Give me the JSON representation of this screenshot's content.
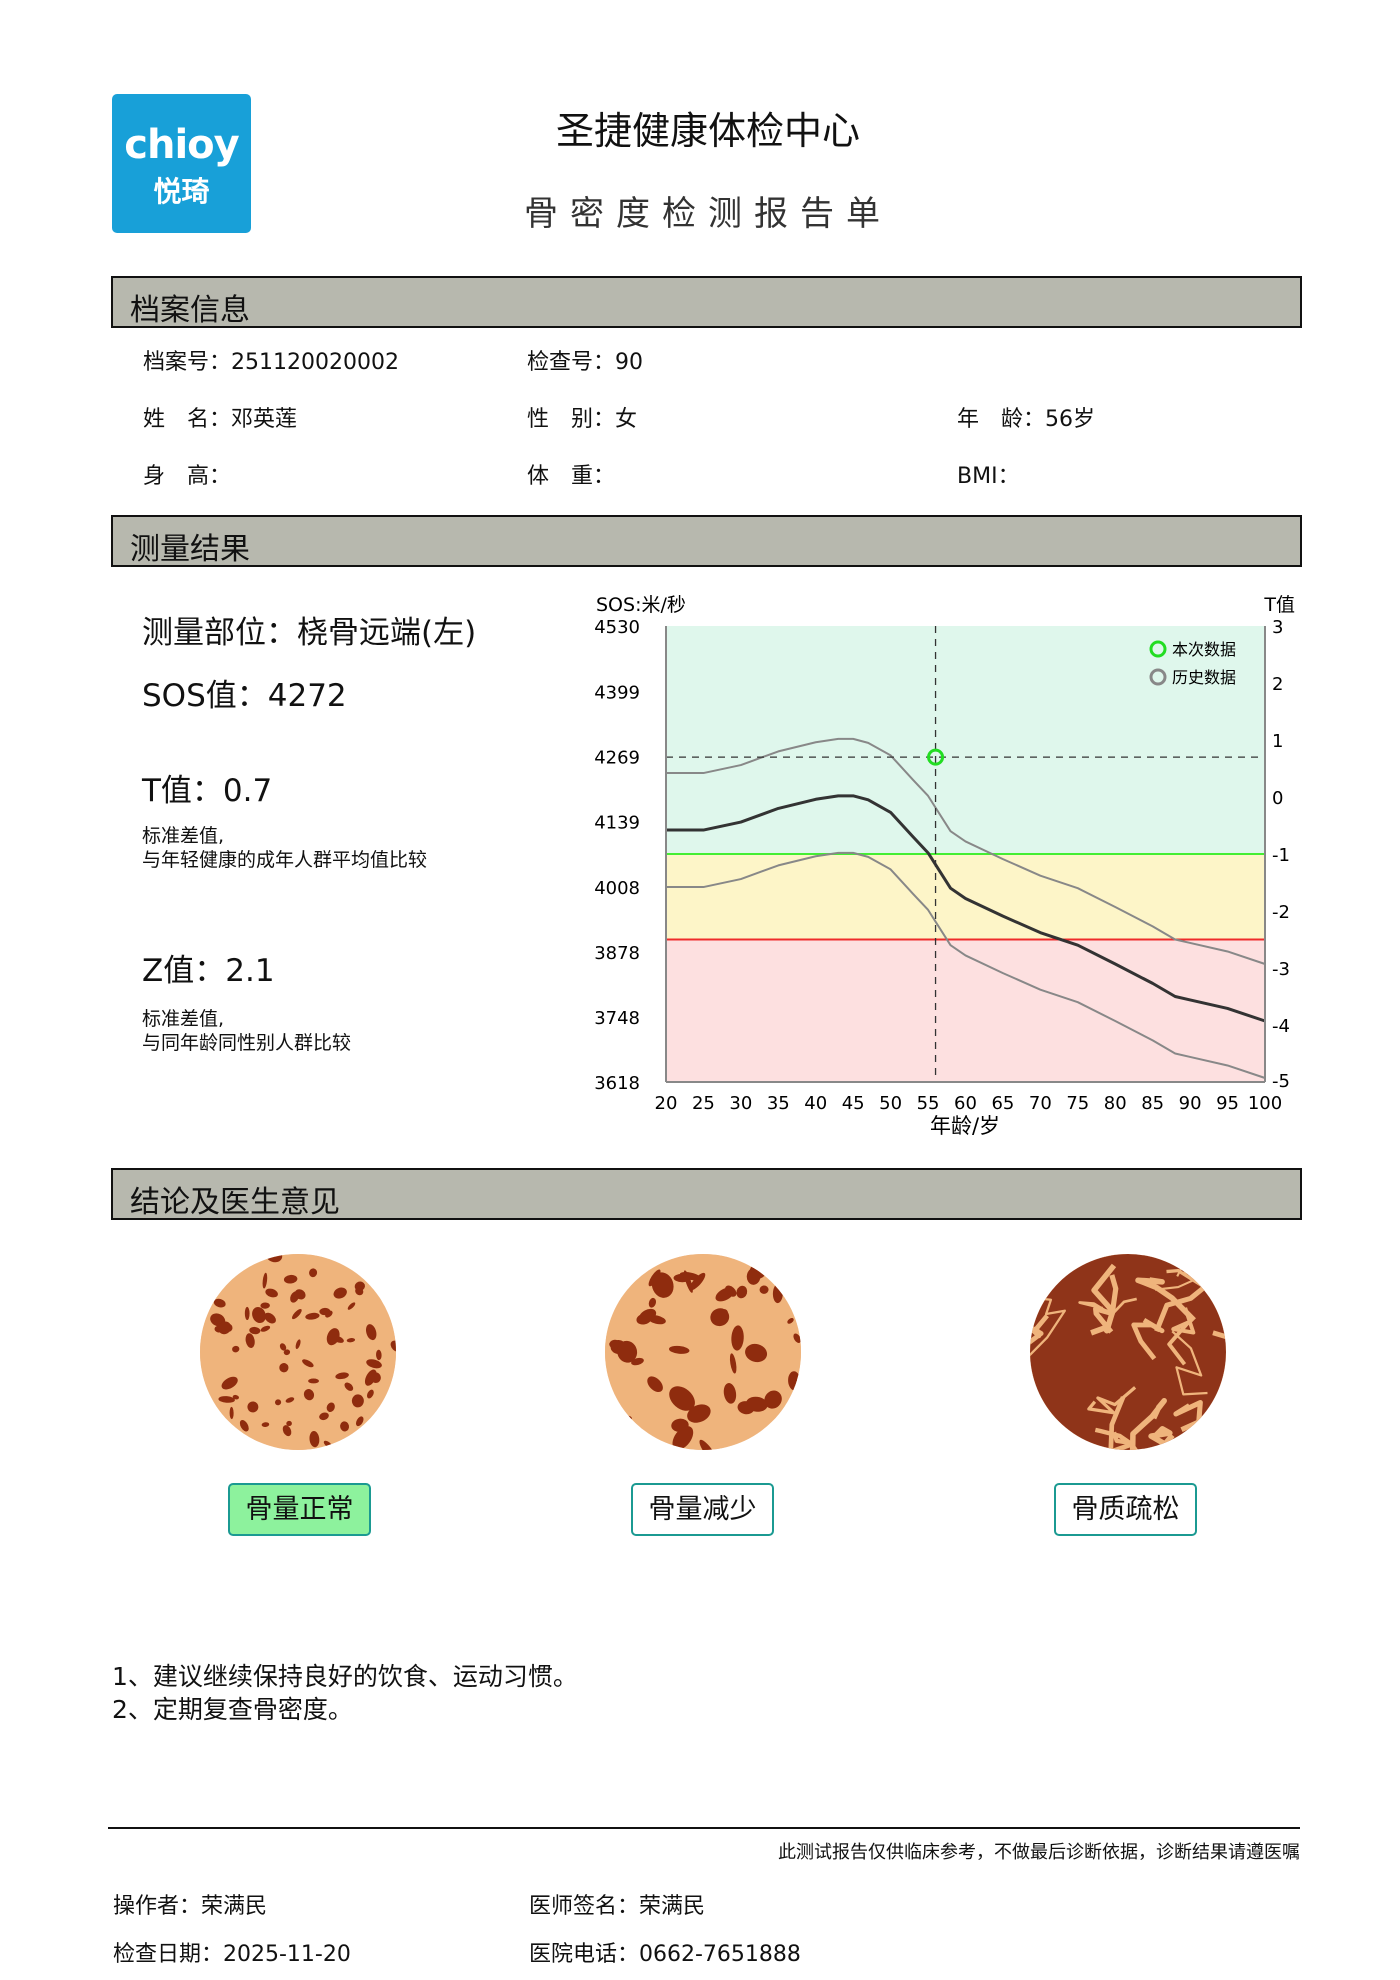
{
  "header": {
    "logo_en": "chioy",
    "logo_cn": "悦琦",
    "logo_color": "#18a0d8",
    "title": "圣捷健康体检中心",
    "subtitle": "骨密度检测报告单"
  },
  "profile": {
    "section_title": "档案信息",
    "fields": [
      {
        "label": "档案号：",
        "value": "251120020002"
      },
      {
        "label": "检查号：",
        "value": "90"
      },
      {
        "label": "姓　名：",
        "value": "邓英莲"
      },
      {
        "label": "性　别：",
        "value": "女"
      },
      {
        "label": "年　龄：",
        "value": "56岁"
      },
      {
        "label": "身　高：",
        "value": ""
      },
      {
        "label": "体　重：",
        "value": ""
      },
      {
        "label": "BMI：",
        "value": ""
      }
    ]
  },
  "measurement": {
    "section_title": "测量结果",
    "site": "测量部位：桡骨远端(左)",
    "sos": "SOS值：4272",
    "t_value": "T值：0.7",
    "t_desc_1": "标准差值,",
    "t_desc_2": "与年轻健康的成年人群平均值比较",
    "z_value": "Z值：2.1",
    "z_desc_1": "标准差值,",
    "z_desc_2": "与同年龄同性别人群比较"
  },
  "chart_data": {
    "type": "line",
    "ylabel_left": "SOS:米/秒",
    "ylabel_right": "T值",
    "xlabel": "年龄/岁",
    "xlim": [
      20,
      100
    ],
    "x_ticks": [
      20,
      25,
      30,
      35,
      40,
      45,
      50,
      55,
      60,
      65,
      70,
      75,
      80,
      85,
      90,
      95,
      100
    ],
    "ylim_left": [
      3618,
      4530
    ],
    "y_ticks_left": [
      4530,
      4399,
      4269,
      4139,
      4008,
      3878,
      3748,
      3618
    ],
    "ylim_right": [
      -5,
      3
    ],
    "y_ticks_right": [
      3,
      2,
      1,
      0,
      -1,
      -2,
      -3,
      -4,
      -5
    ],
    "bands": [
      {
        "from": -1,
        "to": 3,
        "color": "#dff7ec"
      },
      {
        "from": -2.5,
        "to": -1,
        "color": "#fdf5c8"
      },
      {
        "from": -5,
        "to": -2.5,
        "color": "#fde0e0"
      }
    ],
    "thresholds": [
      {
        "t": -1,
        "color": "#44ee33"
      },
      {
        "t": -2.5,
        "color": "#ee2b2b"
      }
    ],
    "ages": [
      20,
      25,
      30,
      35,
      40,
      43,
      45,
      47,
      50,
      53,
      55,
      58,
      60,
      65,
      70,
      75,
      80,
      85,
      88,
      90,
      95,
      100
    ],
    "series": [
      {
        "role": "upper",
        "color": "#888888",
        "t": [
          0.42,
          0.42,
          0.56,
          0.8,
          0.96,
          1.02,
          1.02,
          0.95,
          0.73,
          0.3,
          0.02,
          -0.6,
          -0.78,
          -1.09,
          -1.38,
          -1.6,
          -1.93,
          -2.27,
          -2.5,
          -2.56,
          -2.71,
          -2.93
        ]
      },
      {
        "role": "mean",
        "color": "#333333",
        "t": [
          -0.58,
          -0.58,
          -0.44,
          -0.2,
          -0.04,
          0.02,
          0.02,
          -0.05,
          -0.27,
          -0.7,
          -0.98,
          -1.6,
          -1.78,
          -2.09,
          -2.38,
          -2.6,
          -2.93,
          -3.27,
          -3.5,
          -3.56,
          -3.71,
          -3.93
        ]
      },
      {
        "role": "lower",
        "color": "#888888",
        "t": [
          -1.58,
          -1.58,
          -1.44,
          -1.2,
          -1.04,
          -0.98,
          -0.98,
          -1.05,
          -1.27,
          -1.7,
          -1.98,
          -2.6,
          -2.78,
          -3.09,
          -3.38,
          -3.6,
          -3.93,
          -4.27,
          -4.5,
          -4.56,
          -4.71,
          -4.93
        ]
      }
    ],
    "current_point": {
      "age": 56,
      "t": 0.7,
      "sos": 4272,
      "color": "#22dd22"
    },
    "legend": [
      {
        "label": "本次数据",
        "color": "#22dd22"
      },
      {
        "label": "历史数据",
        "color": "#888888"
      }
    ],
    "legend_position": "top-right"
  },
  "conclusion": {
    "section_title": "结论及医生意见",
    "categories": [
      {
        "label": "骨量正常",
        "selected": true
      },
      {
        "label": "骨量减少",
        "selected": false
      },
      {
        "label": "骨质疏松",
        "selected": false
      }
    ],
    "advice": [
      "1、建议继续保持良好的饮食、运动习惯。",
      "2、定期复查骨密度。"
    ]
  },
  "footer": {
    "disclaimer": "此测试报告仅供临床参考，不做最后诊断依据，诊断结果请遵医嘱",
    "operator": "操作者：荣满民",
    "doctor": "医师签名：荣满民",
    "date": "检查日期：2025-11-20",
    "phone": "医院电话：0662-7651888"
  }
}
